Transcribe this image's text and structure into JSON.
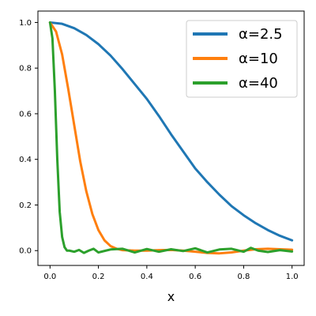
{
  "chart_data": {
    "type": "line",
    "title": "",
    "xlabel": "x",
    "ylabel": "",
    "xlim": [
      -0.05,
      1.05
    ],
    "ylim": [
      -0.065,
      1.05
    ],
    "xticks": [
      0.0,
      0.2,
      0.4,
      0.6,
      0.8,
      1.0
    ],
    "xtick_labels": [
      "0.0",
      "0.2",
      "0.4",
      "0.6",
      "0.8",
      "1.0"
    ],
    "yticks": [
      0.0,
      0.2,
      0.4,
      0.6,
      0.8,
      1.0
    ],
    "ytick_labels": [
      "0.0",
      "0.2",
      "0.4",
      "0.6",
      "0.8",
      "1.0"
    ],
    "grid": false,
    "legend": "top-right",
    "series": [
      {
        "name": "α=2.5",
        "color": "#1f77b4",
        "x": [
          0.0,
          0.05,
          0.1,
          0.15,
          0.2,
          0.25,
          0.3,
          0.35,
          0.4,
          0.45,
          0.5,
          0.55,
          0.6,
          0.65,
          0.7,
          0.75,
          0.8,
          0.85,
          0.9,
          0.95,
          1.0
        ],
        "y": [
          1.0,
          0.994,
          0.975,
          0.945,
          0.905,
          0.855,
          0.795,
          0.73,
          0.665,
          0.59,
          0.51,
          0.435,
          0.36,
          0.3,
          0.245,
          0.195,
          0.155,
          0.12,
          0.09,
          0.065,
          0.045
        ]
      },
      {
        "name": "α=10",
        "color": "#ff7f0e",
        "x": [
          0.0,
          0.025,
          0.05,
          0.075,
          0.1,
          0.125,
          0.15,
          0.175,
          0.2,
          0.225,
          0.25,
          0.275,
          0.3,
          0.35,
          0.4,
          0.45,
          0.5,
          0.55,
          0.6,
          0.65,
          0.7,
          0.75,
          0.8,
          0.85,
          0.9,
          0.95,
          1.0
        ],
        "y": [
          1.0,
          0.96,
          0.86,
          0.71,
          0.55,
          0.39,
          0.26,
          0.16,
          0.09,
          0.045,
          0.02,
          0.008,
          0.002,
          0.0,
          0.0,
          0.002,
          0.003,
          0.0,
          -0.005,
          -0.01,
          -0.012,
          -0.008,
          0.0,
          0.006,
          0.008,
          0.006,
          0.004
        ]
      },
      {
        "name": "α=40",
        "color": "#2ca02c",
        "x": [
          0.0,
          0.01,
          0.02,
          0.03,
          0.04,
          0.05,
          0.06,
          0.07,
          0.08,
          0.1,
          0.12,
          0.14,
          0.16,
          0.18,
          0.2,
          0.25,
          0.3,
          0.35,
          0.4,
          0.45,
          0.5,
          0.55,
          0.6,
          0.65,
          0.7,
          0.75,
          0.8,
          0.83,
          0.86,
          0.9,
          0.95,
          1.0
        ],
        "y": [
          1.0,
          0.93,
          0.7,
          0.4,
          0.17,
          0.06,
          0.015,
          0.0,
          0.0,
          -0.005,
          0.003,
          -0.01,
          0.0,
          0.008,
          -0.008,
          0.005,
          0.008,
          -0.008,
          0.007,
          -0.005,
          0.006,
          -0.002,
          0.01,
          -0.008,
          0.005,
          0.008,
          -0.005,
          0.012,
          0.0,
          -0.006,
          0.002,
          -0.004
        ]
      }
    ]
  }
}
